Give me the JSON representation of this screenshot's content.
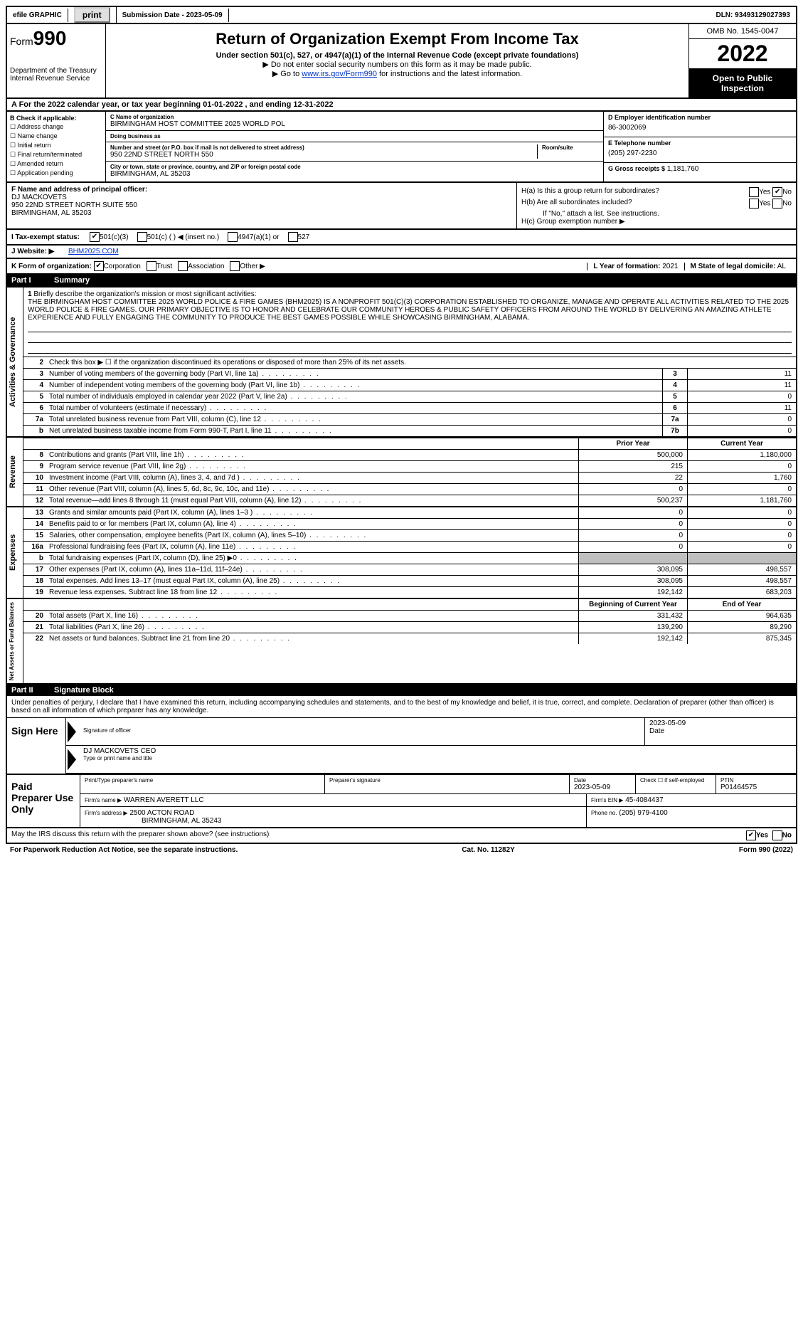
{
  "top": {
    "efile": "efile GRAPHIC",
    "print": "print",
    "sub_label": "Submission Date - 2023-05-09",
    "dln": "DLN: 93493129027393"
  },
  "header": {
    "form_prefix": "Form",
    "form_num": "990",
    "dept": "Department of the Treasury",
    "irs": "Internal Revenue Service",
    "title": "Return of Organization Exempt From Income Tax",
    "subtitle": "Under section 501(c), 527, or 4947(a)(1) of the Internal Revenue Code (except private foundations)",
    "note1": "▶ Do not enter social security numbers on this form as it may be made public.",
    "note2_pre": "▶ Go to ",
    "note2_link": "www.irs.gov/Form990",
    "note2_post": " for instructions and the latest information.",
    "omb": "OMB No. 1545-0047",
    "year": "2022",
    "open": "Open to Public Inspection"
  },
  "row_a": "A For the 2022 calendar year, or tax year beginning 01-01-2022   , and ending 12-31-2022",
  "b": {
    "title": "B Check if applicable:",
    "items": [
      "Address change",
      "Name change",
      "Initial return",
      "Final return/terminated",
      "Amended return",
      "Application pending"
    ]
  },
  "c": {
    "name_label": "C Name of organization",
    "name": "BIRMINGHAM HOST COMMITTEE 2025 WORLD POL",
    "dba_label": "Doing business as",
    "dba": "",
    "addr_label": "Number and street (or P.O. box if mail is not delivered to street address)",
    "addr": "950 22ND STREET NORTH 550",
    "room_label": "Room/suite",
    "city_label": "City or town, state or province, country, and ZIP or foreign postal code",
    "city": "BIRMINGHAM, AL  35203"
  },
  "de": {
    "d_label": "D Employer identification number",
    "d_val": "86-3002069",
    "e_label": "E Telephone number",
    "e_val": "(205) 297-2230",
    "g_label": "G Gross receipts $",
    "g_val": "1,181,760"
  },
  "f": {
    "label": "F  Name and address of principal officer:",
    "name": "DJ MACKOVETS",
    "addr1": "950 22ND STREET NORTH SUITE 550",
    "addr2": "BIRMINGHAM, AL  35203"
  },
  "h": {
    "a": "H(a)  Is this a group return for subordinates?",
    "a_yes": "Yes",
    "a_no": "No",
    "b": "H(b)  Are all subordinates included?",
    "b_yes": "Yes",
    "b_no": "No",
    "b_note": "If \"No,\" attach a list. See instructions.",
    "c": "H(c)  Group exemption number ▶"
  },
  "i": {
    "label": "I  Tax-exempt status:",
    "o1": "501(c)(3)",
    "o2": "501(c) (  ) ◀ (insert no.)",
    "o3": "4947(a)(1) or",
    "o4": "527"
  },
  "j": {
    "label": "J  Website: ▶",
    "val": "BHM2025.COM"
  },
  "k": {
    "label": "K Form of organization:",
    "o1": "Corporation",
    "o2": "Trust",
    "o3": "Association",
    "o4": "Other ▶",
    "l_label": "L Year of formation:",
    "l_val": "2021",
    "m_label": "M State of legal domicile:",
    "m_val": "AL"
  },
  "part1": {
    "num": "Part I",
    "title": "Summary"
  },
  "mission": {
    "num": "1",
    "label": "Briefly describe the organization's mission or most significant activities:",
    "text": "THE BIRMINGHAM HOST COMMITTEE 2025 WORLD POLICE & FIRE GAMES (BHM2025) IS A NONPROFIT 501(C)(3) CORPORATION ESTABLISHED TO ORGANIZE, MANAGE AND OPERATE ALL ACTIVITIES RELATED TO THE 2025 WORLD POLICE & FIRE GAMES. OUR PRIMARY OBJECTIVE IS TO HONOR AND CELEBRATE OUR COMMUNITY HEROES & PUBLIC SAFETY OFFICERS FROM AROUND THE WORLD BY DELIVERING AN AMAZING ATHLETE EXPERIENCE AND FULLY ENGAGING THE COMMUNITY TO PRODUCE THE BEST GAMES POSSIBLE WHILE SHOWCASING BIRMINGHAM, ALABAMA."
  },
  "line2": "Check this box ▶ ☐ if the organization discontinued its operations or disposed of more than 25% of its net assets.",
  "gov_rows": [
    {
      "n": "3",
      "d": "Number of voting members of the governing body (Part VI, line 1a)",
      "b": "3",
      "v": "11"
    },
    {
      "n": "4",
      "d": "Number of independent voting members of the governing body (Part VI, line 1b)",
      "b": "4",
      "v": "11"
    },
    {
      "n": "5",
      "d": "Total number of individuals employed in calendar year 2022 (Part V, line 2a)",
      "b": "5",
      "v": "0"
    },
    {
      "n": "6",
      "d": "Total number of volunteers (estimate if necessary)",
      "b": "6",
      "v": "11"
    },
    {
      "n": "7a",
      "d": "Total unrelated business revenue from Part VIII, column (C), line 12",
      "b": "7a",
      "v": "0"
    },
    {
      "n": "b",
      "d": "Net unrelated business taxable income from Form 990-T, Part I, line 11",
      "b": "7b",
      "v": "0"
    }
  ],
  "col_hdr": {
    "prior": "Prior Year",
    "current": "Current Year"
  },
  "rev_rows": [
    {
      "n": "8",
      "d": "Contributions and grants (Part VIII, line 1h)",
      "p": "500,000",
      "c": "1,180,000"
    },
    {
      "n": "9",
      "d": "Program service revenue (Part VIII, line 2g)",
      "p": "215",
      "c": "0"
    },
    {
      "n": "10",
      "d": "Investment income (Part VIII, column (A), lines 3, 4, and 7d )",
      "p": "22",
      "c": "1,760"
    },
    {
      "n": "11",
      "d": "Other revenue (Part VIII, column (A), lines 5, 6d, 8c, 9c, 10c, and 11e)",
      "p": "0",
      "c": "0"
    },
    {
      "n": "12",
      "d": "Total revenue—add lines 8 through 11 (must equal Part VIII, column (A), line 12)",
      "p": "500,237",
      "c": "1,181,760"
    }
  ],
  "exp_rows": [
    {
      "n": "13",
      "d": "Grants and similar amounts paid (Part IX, column (A), lines 1–3 )",
      "p": "0",
      "c": "0"
    },
    {
      "n": "14",
      "d": "Benefits paid to or for members (Part IX, column (A), line 4)",
      "p": "0",
      "c": "0"
    },
    {
      "n": "15",
      "d": "Salaries, other compensation, employee benefits (Part IX, column (A), lines 5–10)",
      "p": "0",
      "c": "0"
    },
    {
      "n": "16a",
      "d": "Professional fundraising fees (Part IX, column (A), line 11e)",
      "p": "0",
      "c": "0"
    },
    {
      "n": "b",
      "d": "Total fundraising expenses (Part IX, column (D), line 25) ▶0",
      "p": "",
      "c": "",
      "grey": true
    },
    {
      "n": "17",
      "d": "Other expenses (Part IX, column (A), lines 11a–11d, 11f–24e)",
      "p": "308,095",
      "c": "498,557"
    },
    {
      "n": "18",
      "d": "Total expenses. Add lines 13–17 (must equal Part IX, column (A), line 25)",
      "p": "308,095",
      "c": "498,557"
    },
    {
      "n": "19",
      "d": "Revenue less expenses. Subtract line 18 from line 12",
      "p": "192,142",
      "c": "683,203"
    }
  ],
  "bal_hdr": {
    "begin": "Beginning of Current Year",
    "end": "End of Year"
  },
  "bal_rows": [
    {
      "n": "20",
      "d": "Total assets (Part X, line 16)",
      "p": "331,432",
      "c": "964,635"
    },
    {
      "n": "21",
      "d": "Total liabilities (Part X, line 26)",
      "p": "139,290",
      "c": "89,290"
    },
    {
      "n": "22",
      "d": "Net assets or fund balances. Subtract line 21 from line 20",
      "p": "192,142",
      "c": "875,345"
    }
  ],
  "side_labels": {
    "gov": "Activities & Governance",
    "rev": "Revenue",
    "exp": "Expenses",
    "bal": "Net Assets or Fund Balances"
  },
  "part2": {
    "num": "Part II",
    "title": "Signature Block"
  },
  "sig": {
    "decl": "Under penalties of perjury, I declare that I have examined this return, including accompanying schedules and statements, and to the best of my knowledge and belief, it is true, correct, and complete. Declaration of preparer (other than officer) is based on all information of which preparer has any knowledge.",
    "sign_here": "Sign Here",
    "sig_label": "Signature of officer",
    "date_label": "Date",
    "date": "2023-05-09",
    "name": "DJ MACKOVETS CEO",
    "name_label": "Type or print name and title"
  },
  "paid": {
    "title": "Paid Preparer Use Only",
    "h1": "Print/Type preparer's name",
    "h2": "Preparer's signature",
    "h3": "Date",
    "h4": "Check ☐ if self-employed",
    "h5": "PTIN",
    "date": "2023-05-09",
    "ptin": "P01464575",
    "firm_label": "Firm's name   ▶",
    "firm": "WARREN AVERETT LLC",
    "ein_label": "Firm's EIN ▶",
    "ein": "45-4084437",
    "addr_label": "Firm's address ▶",
    "addr1": "2500 ACTON ROAD",
    "addr2": "BIRMINGHAM, AL  35243",
    "phone_label": "Phone no.",
    "phone": "(205) 979-4100"
  },
  "footer": {
    "q": "May the IRS discuss this return with the preparer shown above? (see instructions)",
    "yes": "Yes",
    "no": "No",
    "pra": "For Paperwork Reduction Act Notice, see the separate instructions.",
    "cat": "Cat. No. 11282Y",
    "form": "Form 990 (2022)"
  }
}
